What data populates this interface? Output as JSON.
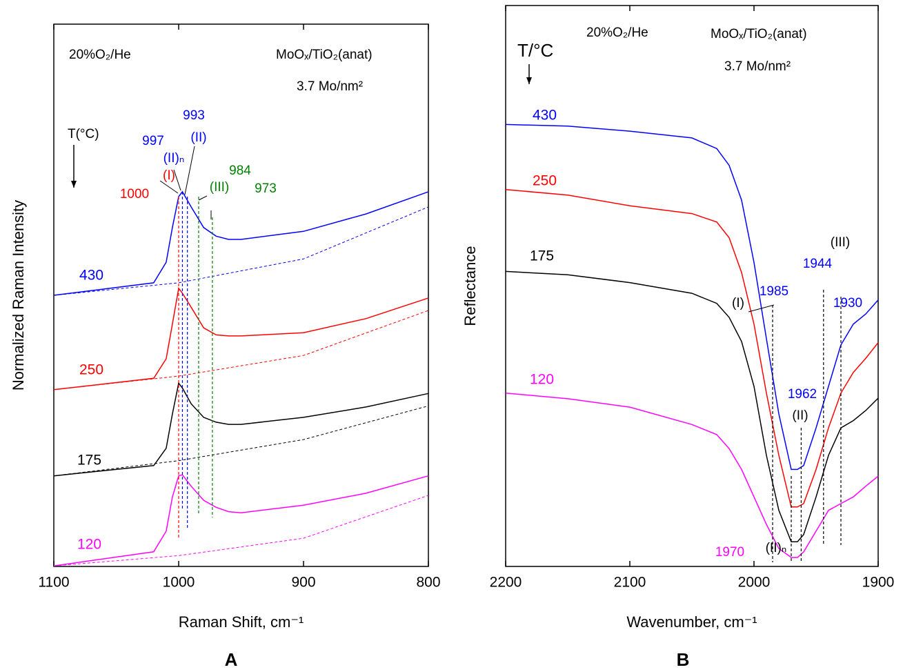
{
  "chart_data": [
    {
      "type": "line",
      "panel": "A",
      "xlabel": "Raman Shift, cm⁻¹",
      "ylabel": "Normalized Raman Intensity",
      "texts": [
        "20%O₂/He",
        "MoOₓ/TiO₂(anat)",
        "3.7 Mo/nm²",
        "T(°C)"
      ],
      "xlim": [
        1100,
        800
      ],
      "xticks": [
        1100,
        1000,
        900,
        800
      ],
      "ylim": [
        0,
        100
      ],
      "x": [
        1100,
        1020,
        1010,
        1005,
        1000,
        997,
        990,
        980,
        970,
        960,
        950,
        900,
        850,
        800
      ],
      "series": [
        {
          "name": "430",
          "color": "#0000ff",
          "values": [
            50.0,
            52.3,
            56.1,
            62.5,
            68.2,
            69.1,
            66.3,
            62.5,
            60.9,
            60.3,
            60.3,
            61.8,
            65.0,
            69.1
          ]
        },
        {
          "name": "250",
          "color": "#ff0000",
          "values": [
            32.6,
            34.7,
            38.3,
            44.7,
            51.3,
            50.4,
            47.8,
            44.0,
            42.7,
            42.5,
            42.5,
            43.1,
            45.7,
            49.5
          ]
        },
        {
          "name": "175",
          "color": "#000000",
          "values": [
            16.7,
            18.6,
            21.8,
            28.1,
            33.8,
            32.9,
            30.0,
            27.5,
            26.6,
            26.2,
            26.2,
            27.5,
            29.4,
            31.9
          ]
        },
        {
          "name": "120",
          "color": "#ff00ff",
          "values": [
            0.1,
            2.7,
            6.5,
            12.8,
            16.7,
            16.9,
            14.8,
            12.2,
            10.9,
            10.1,
            9.9,
            11.3,
            13.5,
            16.7
          ]
        }
      ],
      "baselines": {
        "x": [
          1100,
          1000,
          900,
          800
        ],
        "series": [
          {
            "color": "#0000ff",
            "values": [
              50.0,
              52.3,
              56.7,
              66.3
            ]
          },
          {
            "color": "#ff0000",
            "values": [
              32.6,
              35.1,
              38.9,
              47.2
            ]
          },
          {
            "color": "#000000",
            "values": [
              16.7,
              19.5,
              23.4,
              29.6
            ]
          },
          {
            "color": "#ff00ff",
            "values": [
              0.1,
              2.0,
              5.2,
              13.1
            ]
          }
        ]
      },
      "peaks": [
        {
          "x": 1000,
          "label": "(I)",
          "color": "#ff0000"
        },
        {
          "x": 997,
          "label": "(II)ₙ",
          "color": "#0000ff"
        },
        {
          "x": 993,
          "label": "(II)",
          "color": "#0000ff"
        },
        {
          "x": 984,
          "label": "(III)",
          "color": "#008000"
        },
        {
          "x": 973,
          "color": "#008000"
        }
      ]
    },
    {
      "type": "line",
      "panel": "B",
      "xlabel": "Wavenumber, cm⁻¹",
      "ylabel": "Reflectance",
      "texts": [
        "20%O₂/He",
        "MoOₓ/TiO₂(anat)",
        "3.7 Mo/nm²",
        "T/°C"
      ],
      "xlim": [
        2200,
        1900
      ],
      "xticks": [
        2200,
        2100,
        2000,
        1900
      ],
      "ylim": [
        0,
        100
      ],
      "x": [
        2200,
        2150,
        2100,
        2050,
        2030,
        2020,
        2010,
        2000,
        1990,
        1980,
        1970,
        1965,
        1960,
        1950,
        1940,
        1930,
        1920,
        1910,
        1900
      ],
      "series": [
        {
          "name": "430",
          "color": "#0000ff",
          "values": [
            78.8,
            78.5,
            77.6,
            76.4,
            74.5,
            71.5,
            65.3,
            54.2,
            40.6,
            27.2,
            17.3,
            17.3,
            18.0,
            24.7,
            32.1,
            39.5,
            43.2,
            45.0,
            47.5
          ]
        },
        {
          "name": "250",
          "color": "#ff0000",
          "values": [
            67.2,
            66.2,
            64.3,
            62.9,
            61.4,
            58.6,
            52.4,
            43.2,
            30.9,
            19.8,
            10.6,
            10.6,
            11.2,
            17.3,
            24.7,
            30.9,
            34.6,
            37.1,
            39.9
          ]
        },
        {
          "name": "175",
          "color": "#000000",
          "values": [
            52.6,
            52.0,
            50.6,
            48.7,
            46.9,
            44.4,
            40.1,
            32.1,
            19.8,
            10.0,
            4.4,
            4.4,
            5.7,
            12.4,
            19.8,
            24.7,
            26.0,
            27.8,
            30.0
          ]
        },
        {
          "name": "120",
          "color": "#ff00ff",
          "values": [
            30.9,
            29.9,
            28.4,
            25.3,
            23.5,
            21.0,
            17.3,
            12.4,
            7.5,
            3.2,
            1.6,
            1.6,
            2.6,
            6.3,
            10.0,
            11.2,
            12.4,
            14.3,
            16.1
          ]
        }
      ],
      "peaks": [
        {
          "x": 1985,
          "label": "(I)",
          "color": "#0000ff"
        },
        {
          "x": 1970,
          "label": "(II)ₙ",
          "color": "#ff00ff"
        },
        {
          "x": 1962,
          "label": "(II)",
          "color": "#0000ff"
        },
        {
          "x": 1944,
          "label": "(III)",
          "color": "#0000ff"
        },
        {
          "x": 1930,
          "color": "#0000ff"
        }
      ]
    }
  ]
}
